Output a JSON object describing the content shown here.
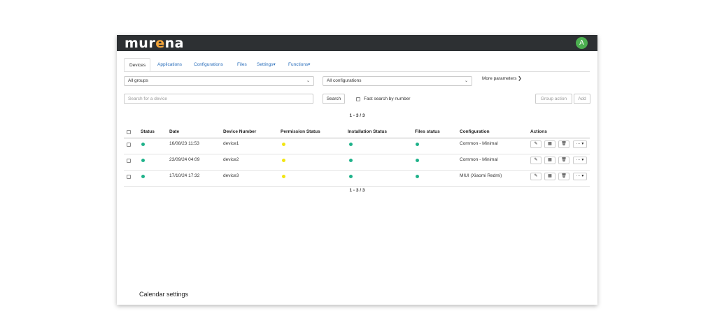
{
  "app": {
    "logo_prefix": "mur",
    "logo_accent": "e",
    "logo_suffix": "na",
    "avatar_letter": "A"
  },
  "tabs": [
    {
      "label": "Devices",
      "active": true
    },
    {
      "label": "Applications"
    },
    {
      "label": "Configurations"
    },
    {
      "label": "Files"
    },
    {
      "label": "Settings▾"
    },
    {
      "label": "Functions▾"
    }
  ],
  "filters": {
    "group_select": "All groups",
    "config_select": "All configurations",
    "more_params": "More parameters ❯"
  },
  "search": {
    "placeholder": "Search for a device",
    "button": "Search",
    "fast_search_label": "Fast search by number",
    "group_action": "Group action",
    "add": "Add"
  },
  "pager_top": "1 - 3 / 3",
  "pager_bottom": "1 - 3 / 3",
  "table": {
    "headers": {
      "status": "Status",
      "date": "Date",
      "device_number": "Device Number",
      "permission": "Permission Status",
      "installation": "Installation Status",
      "files": "Files status",
      "configuration": "Configuration",
      "actions": "Actions"
    },
    "rows": [
      {
        "date": "16/08/23 11:53",
        "device": "device1",
        "configuration": "Common - Minimal"
      },
      {
        "date": "23/09/24 04:09",
        "device": "device2",
        "configuration": "Common - Minimal"
      },
      {
        "date": "17/10/24 17:32",
        "device": "device3",
        "configuration": "MIUI (Xiaomi Redmi)"
      }
    ],
    "action_icons": {
      "edit": "✎",
      "qr": "▦",
      "delete": "🗑",
      "more": "··· ▾"
    }
  },
  "colors": {
    "green": "#1fb28a",
    "yellow": "#f2e513",
    "accent": "#f5a63a"
  },
  "footer": {
    "calendar_settings": "Calendar settings"
  }
}
